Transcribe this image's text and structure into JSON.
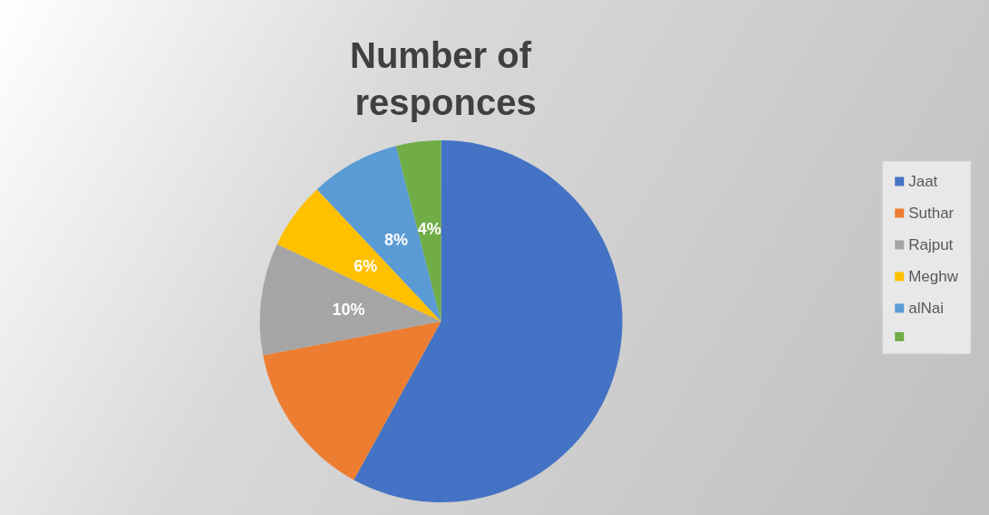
{
  "chart_data": {
    "type": "pie",
    "title": "Number of responces",
    "categories": [
      "Jaat",
      "Suthar",
      "Rajput",
      "Meghw",
      "alNai",
      null
    ],
    "values": [
      58,
      14,
      10,
      6,
      8,
      4
    ],
    "colors": [
      "#4472c4",
      "#ed7d31",
      "#a5a5a5",
      "#ffc000",
      "#5b9bd5",
      "#70ad47"
    ],
    "value_labels": [
      null,
      null,
      "10%",
      "6%",
      "8%",
      "4%"
    ],
    "legend": "right"
  }
}
